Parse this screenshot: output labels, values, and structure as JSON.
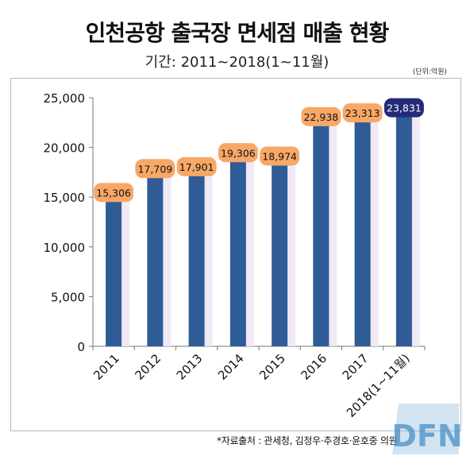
{
  "header": {
    "title": "인천공항 출국장 면세점 매출 현황",
    "subtitle": "기간: 2011~2018(1~11월)",
    "unit": "(단위:억원)"
  },
  "footer": {
    "source": "*자료출처 : 관세청, 김정우·추경호·윤호중 의원"
  },
  "watermark": {
    "text": "DFN",
    "icon": "dfn-logo"
  },
  "colors": {
    "bar": "#2f5b97",
    "label_bg": "#f7a867",
    "label_bg_highlight": "#232b78",
    "label_text": "#111111",
    "label_text_highlight": "#ffffff"
  },
  "chart_data": {
    "type": "bar",
    "categories": [
      "2011",
      "2012",
      "2013",
      "2014",
      "2015",
      "2016",
      "2017",
      "2018(1~11월)"
    ],
    "values": [
      15306,
      17709,
      17901,
      19306,
      18974,
      22938,
      23313,
      23831
    ],
    "value_labels": [
      "15,306",
      "17,709",
      "17,901",
      "19,306",
      "18,974",
      "22,938",
      "23,313",
      "23,831"
    ],
    "highlight_index": 7,
    "ylim": [
      0,
      25000
    ],
    "yticks": [
      0,
      5000,
      10000,
      15000,
      20000,
      25000
    ],
    "ytick_labels": [
      "0",
      "5,000",
      "10,000",
      "15,000",
      "20,000",
      "25,000"
    ],
    "grid": false,
    "legend": "none"
  }
}
